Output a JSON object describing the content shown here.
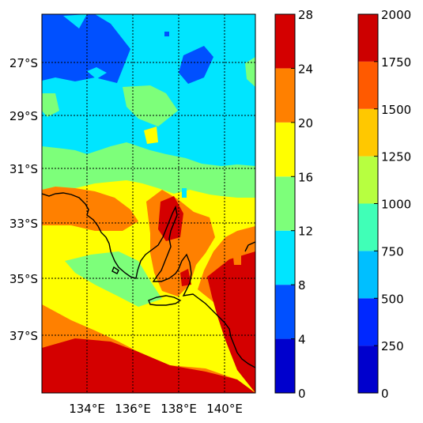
{
  "map": {
    "lon_ticks": [
      "134°E",
      "136°E",
      "138°E",
      "140°E"
    ],
    "lat_ticks": [
      "27°S",
      "29°S",
      "31°S",
      "33°S",
      "35°S",
      "37°S"
    ],
    "grid": "dotted",
    "coastline": true
  },
  "colorbar_left": {
    "ticks": [
      "0",
      "4",
      "8",
      "12",
      "16",
      "20",
      "24",
      "28"
    ],
    "levels": [
      0,
      4,
      8,
      12,
      16,
      20,
      24,
      28
    ],
    "colors": [
      "#0000cd",
      "#0050ff",
      "#00e5ff",
      "#7dff7a",
      "#ffff00",
      "#ff8000",
      "#d40000"
    ]
  },
  "colorbar_right": {
    "ticks": [
      "0",
      "250",
      "500",
      "750",
      "1000",
      "1250",
      "1500",
      "1750",
      "2000"
    ],
    "levels": [
      0,
      250,
      500,
      750,
      1000,
      1250,
      1500,
      1750,
      2000
    ],
    "colors": [
      "#0000cd",
      "#0028ff",
      "#00bfff",
      "#40ffb7",
      "#b7ff40",
      "#ffc800",
      "#ff5a00",
      "#cd0000"
    ]
  },
  "colors": {
    "sea_blue": "#0050ff",
    "cyan": "#00e5ff",
    "green": "#7dff7a",
    "yellow": "#ffff00",
    "orange": "#ff8000",
    "red": "#d40000"
  }
}
